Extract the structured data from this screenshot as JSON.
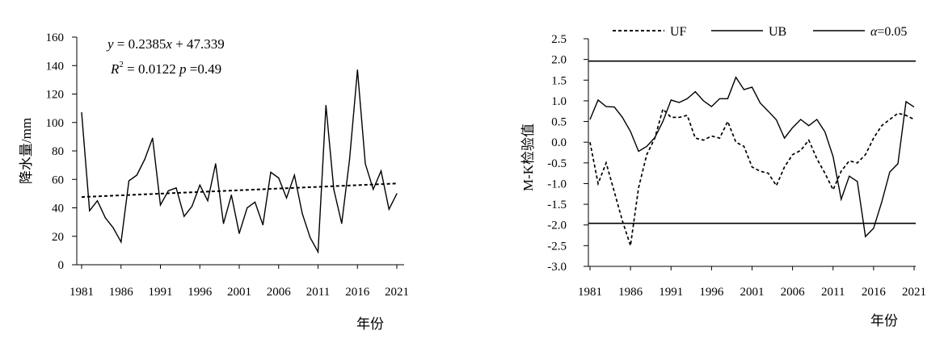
{
  "chart_data": [
    {
      "type": "line",
      "xlabel": "年份",
      "ylabel": "降水量/mm",
      "xlim": [
        1981,
        2021
      ],
      "ylim": [
        0,
        160
      ],
      "x_ticks": [
        "1981",
        "1986",
        "1991",
        "1996",
        "2001",
        "2006",
        "2011",
        "2016",
        "2021"
      ],
      "y_ticks": [
        "0",
        "20",
        "40",
        "60",
        "80",
        "100",
        "120",
        "140",
        "160"
      ],
      "annotations": {
        "eq_y": "y",
        "eq_eq": " = 0.2385",
        "eq_x": "x",
        "eq_rest": " + 47.339",
        "r2_r": "R",
        "r2_sup": "2",
        "r2_val": " = 0.0122 ",
        "r2_p": "p",
        "r2_pval": " =0.49"
      },
      "trend": {
        "slope": 0.2385,
        "intercept": 47.339
      },
      "x": [
        1981,
        1982,
        1983,
        1984,
        1985,
        1986,
        1987,
        1988,
        1989,
        1990,
        1991,
        1992,
        1993,
        1994,
        1995,
        1996,
        1997,
        1998,
        1999,
        2000,
        2001,
        2002,
        2003,
        2004,
        2005,
        2006,
        2007,
        2008,
        2009,
        2010,
        2011,
        2012,
        2013,
        2014,
        2015,
        2016,
        2017,
        2018,
        2019,
        2020,
        2021
      ],
      "series": [
        {
          "values": [
            107,
            38,
            45,
            33,
            26,
            16,
            59,
            63,
            74,
            89,
            42,
            52,
            54,
            34,
            41,
            56,
            45,
            71,
            29,
            49,
            22,
            40,
            44,
            28,
            65,
            61,
            47,
            63,
            36,
            19,
            9,
            112,
            53,
            29,
            74,
            137,
            71,
            53,
            66,
            39,
            50
          ]
        }
      ]
    },
    {
      "type": "line",
      "xlabel": "年份",
      "ylabel": "M-K检验值",
      "xlim": [
        1981,
        2021
      ],
      "ylim": [
        -3.0,
        2.5
      ],
      "x_ticks": [
        "1981",
        "1986",
        "1991",
        "1996",
        "2001",
        "2006",
        "2011",
        "2016",
        "2021"
      ],
      "y_ticks": [
        "-3.0",
        "-2.5",
        "-2.0",
        "-1.5",
        "-1.0",
        "-0.5",
        "0.0",
        "0.5",
        "1.0",
        "1.5",
        "2.0",
        "2.5"
      ],
      "alpha_lines": [
        1.96,
        -1.96
      ],
      "legend": {
        "uf": "UF",
        "ub": "UB",
        "alpha_sym": "α",
        "alpha_val": "=0.05",
        "placement": "top"
      },
      "x": [
        1981,
        1982,
        1983,
        1984,
        1985,
        1986,
        1987,
        1988,
        1989,
        1990,
        1991,
        1992,
        1993,
        1994,
        1995,
        1996,
        1997,
        1998,
        1999,
        2000,
        2001,
        2002,
        2003,
        2004,
        2005,
        2006,
        2007,
        2008,
        2009,
        2010,
        2011,
        2012,
        2013,
        2014,
        2015,
        2016,
        2017,
        2018,
        2019,
        2020,
        2021
      ],
      "series": [
        {
          "name": "UF",
          "style": "dashed",
          "values": [
            0.0,
            -1.0,
            -0.5,
            -1.2,
            -1.9,
            -2.5,
            -1.1,
            -0.3,
            0.1,
            0.8,
            0.6,
            0.6,
            0.65,
            0.1,
            0.05,
            0.15,
            0.1,
            0.5,
            0.0,
            -0.1,
            -0.6,
            -0.7,
            -0.75,
            -1.05,
            -0.6,
            -0.3,
            -0.2,
            0.05,
            -0.4,
            -0.75,
            -1.15,
            -0.7,
            -0.45,
            -0.5,
            -0.3,
            0.1,
            0.4,
            0.55,
            0.7,
            0.65,
            0.55
          ]
        },
        {
          "name": "UB",
          "style": "solid",
          "values": [
            0.55,
            1.02,
            0.86,
            0.85,
            0.6,
            0.26,
            -0.22,
            -0.1,
            0.11,
            0.5,
            1.02,
            0.96,
            1.05,
            1.22,
            1.0,
            0.86,
            1.05,
            1.05,
            1.57,
            1.27,
            1.33,
            0.95,
            0.75,
            0.54,
            0.1,
            0.35,
            0.55,
            0.4,
            0.55,
            0.25,
            -0.35,
            -1.38,
            -0.82,
            -0.95,
            -2.28,
            -2.08,
            -1.45,
            -0.72,
            -0.52,
            0.98,
            0.85
          ]
        }
      ]
    }
  ]
}
